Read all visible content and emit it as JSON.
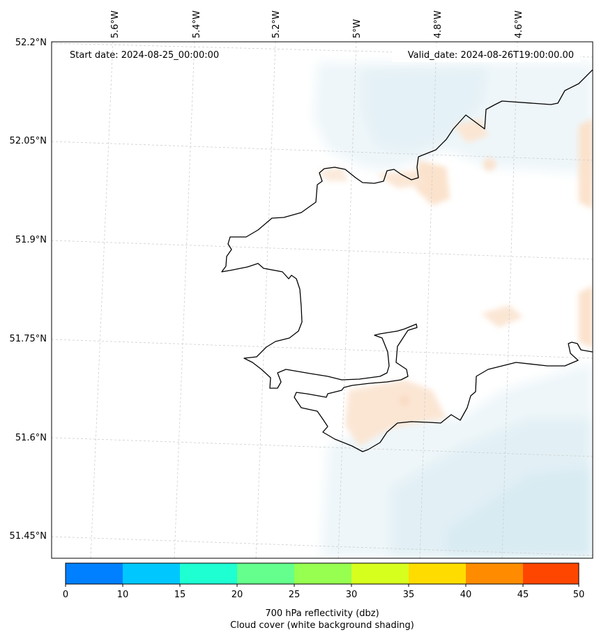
{
  "map": {
    "start_date": "Start date: 2024-08-25_00:00:00",
    "valid_date": "Valid_date: 2024-08-26T19:00:00.00",
    "lon_labels": [
      "5.6°W",
      "5.4°W",
      "5.2°W",
      "5°W",
      "4.8°W",
      "4.6°W"
    ],
    "lat_labels": [
      "52.2°N",
      "52.05°N",
      "51.9°N",
      "51.75°N",
      "51.6°N",
      "51.45°N"
    ],
    "coastline_color": "#000000",
    "gridline_color": "#cccccc",
    "cloud_shading_color": "#d8ecf2",
    "reflectivity_shading_color": "#f9dcc4"
  },
  "colorbar": {
    "label_line1": "700 hPa reflectivity (dbz)",
    "label_line2": "Cloud cover (white background shading)",
    "ticks": [
      "0",
      "10",
      "15",
      "20",
      "25",
      "30",
      "35",
      "40",
      "45",
      "50"
    ],
    "colors": [
      "#0080ff",
      "#00c8ff",
      "#1effd2",
      "#64ff8c",
      "#96ff50",
      "#d7ff1e",
      "#ffdc00",
      "#ff8c00",
      "#ff4600"
    ]
  }
}
